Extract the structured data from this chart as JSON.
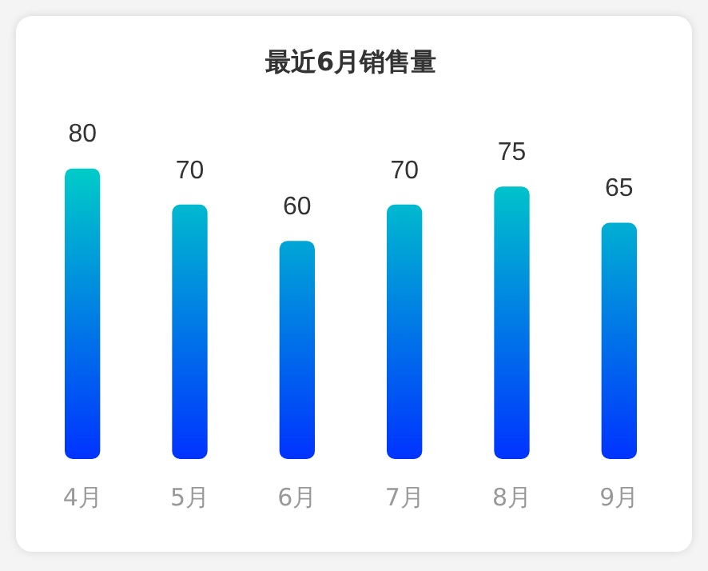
{
  "chart_data": {
    "type": "bar",
    "title": "最近6月销售量",
    "categories": [
      "4月",
      "5月",
      "6月",
      "7月",
      "8月",
      "9月"
    ],
    "series": [
      {
        "color": "#0033ff",
        "values": [
          80,
          70,
          60,
          70,
          75,
          65
        ]
      }
    ],
    "data_labels": true,
    "grid": false,
    "legend": false,
    "tick_labels": "x"
  }
}
